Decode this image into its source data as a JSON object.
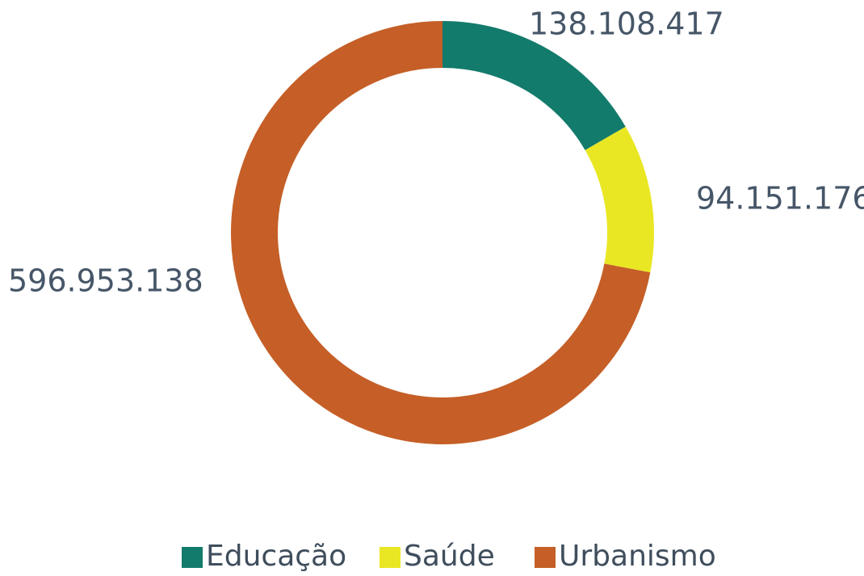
{
  "chart_data": {
    "type": "donut",
    "categories": [
      "Educação",
      "Saúde",
      "Urbanismo"
    ],
    "values": [
      138108417,
      94151176,
      596953138
    ],
    "value_labels": [
      "138.108.417",
      "94.151.176",
      "596.953.138"
    ],
    "colors": [
      "#137b6c",
      "#e9e724",
      "#c55f27"
    ],
    "legend": "bottom"
  }
}
